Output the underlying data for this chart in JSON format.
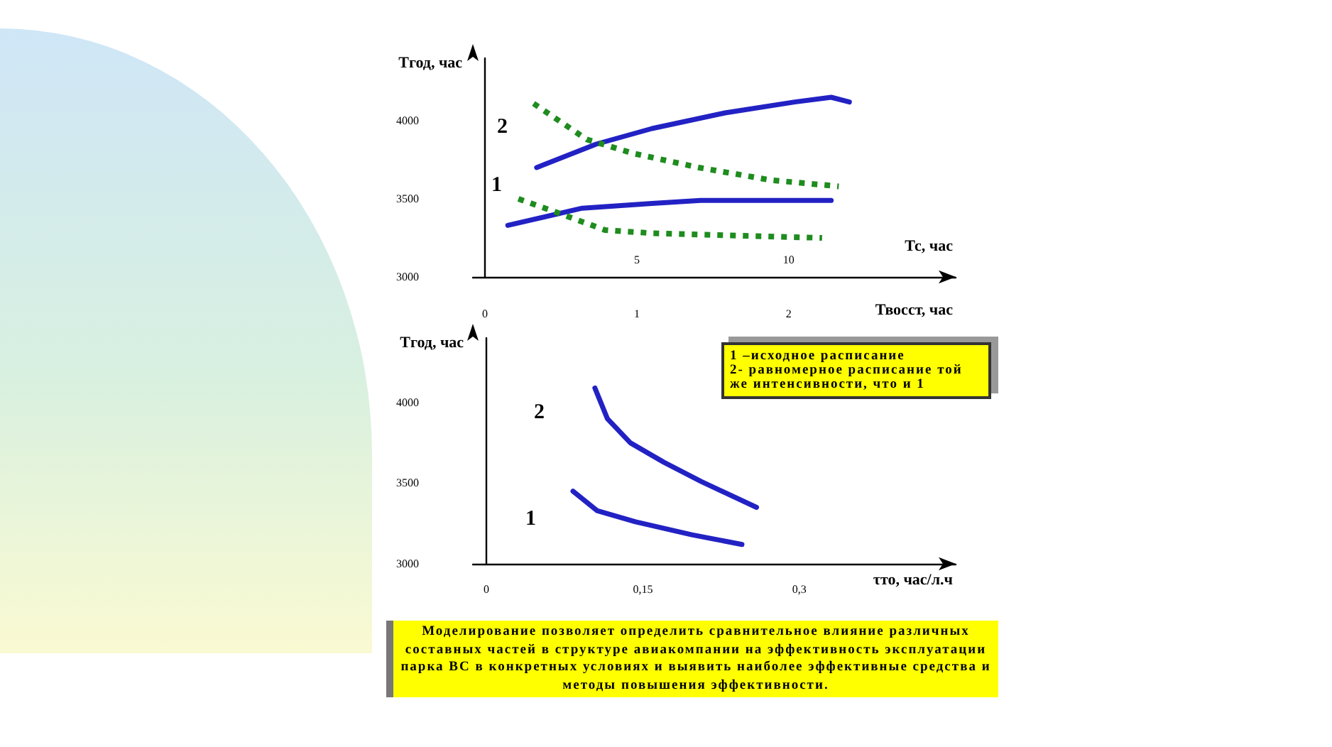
{
  "chart_data": [
    {
      "type": "line",
      "xlabel": "Тс, час",
      "x2label": "Твосст, час",
      "ylabel": "Тгод, час",
      "xlim": [
        -0.4,
        15.5
      ],
      "xticks": [
        5,
        10
      ],
      "x2lim": [
        -0.08,
        3.1
      ],
      "x2ticks": [
        0,
        1,
        2
      ],
      "ylim": [
        3000,
        4400
      ],
      "yticks": [
        3000,
        3500,
        4000
      ],
      "marker": "none",
      "annotations": [
        "2",
        "1"
      ],
      "series": [
        {
          "color": "#2222c4",
          "line_style": "solid",
          "x": [
            1.7,
            3.66,
            5.5,
            7.9,
            10.2,
            11.4,
            12.0
          ],
          "values": [
            3700,
            3850,
            3950,
            4050,
            4120,
            4150,
            4120
          ]
        },
        {
          "color": "#2222c4",
          "line_style": "solid",
          "x": [
            0.75,
            3.2,
            5.5,
            7.1,
            11.4
          ],
          "values": [
            3330,
            3440,
            3470,
            3490,
            3490
          ]
        },
        {
          "color": "#1e8c1e",
          "line_style": "dotted",
          "axis": "x2",
          "x": [
            0.32,
            0.67,
            0.98,
            1.41,
            1.88,
            2.33
          ],
          "values": [
            4110,
            3880,
            3790,
            3700,
            3620,
            3580
          ]
        },
        {
          "color": "#1e8c1e",
          "line_style": "dotted",
          "axis": "x2",
          "x": [
            0.22,
            0.48,
            0.79,
            1.1,
            2.22
          ],
          "values": [
            3500,
            3410,
            3300,
            3280,
            3250
          ]
        }
      ]
    },
    {
      "type": "line",
      "xlabel": "τто, час/л.ч",
      "ylabel": "Тгод, час",
      "xlim": [
        -0.013,
        0.45
      ],
      "xticks": [
        {
          "value": 0,
          "label": "0"
        },
        {
          "value": 0.15,
          "label": "0,15"
        },
        {
          "value": 0.3,
          "label": "0,3"
        }
      ],
      "ylim": [
        3000,
        4400
      ],
      "yticks": [
        3000,
        3500,
        4000
      ],
      "marker": "none",
      "annotations": [
        "2",
        "1",
        "1 –исходное расписание\n2- равномерное расписание той же интенсивности, что и 1",
        "Моделирование позволяет определить сравнительное влияние различных составных частей в структуре авиакомпании на эффективность эксплуатации парка ВС в конкретных условиях и выявить наиболее эффективные средства и методы повышения эффективности."
      ],
      "series": [
        {
          "color": "#2222c4",
          "line_style": "solid",
          "x": [
            0.104,
            0.116,
            0.138,
            0.17,
            0.206,
            0.259
          ],
          "values": [
            4090,
            3900,
            3750,
            3630,
            3510,
            3350
          ]
        },
        {
          "color": "#2222c4",
          "line_style": "solid",
          "x": [
            0.083,
            0.106,
            0.143,
            0.197,
            0.245
          ],
          "values": [
            3450,
            3330,
            3260,
            3180,
            3120
          ]
        }
      ]
    }
  ]
}
